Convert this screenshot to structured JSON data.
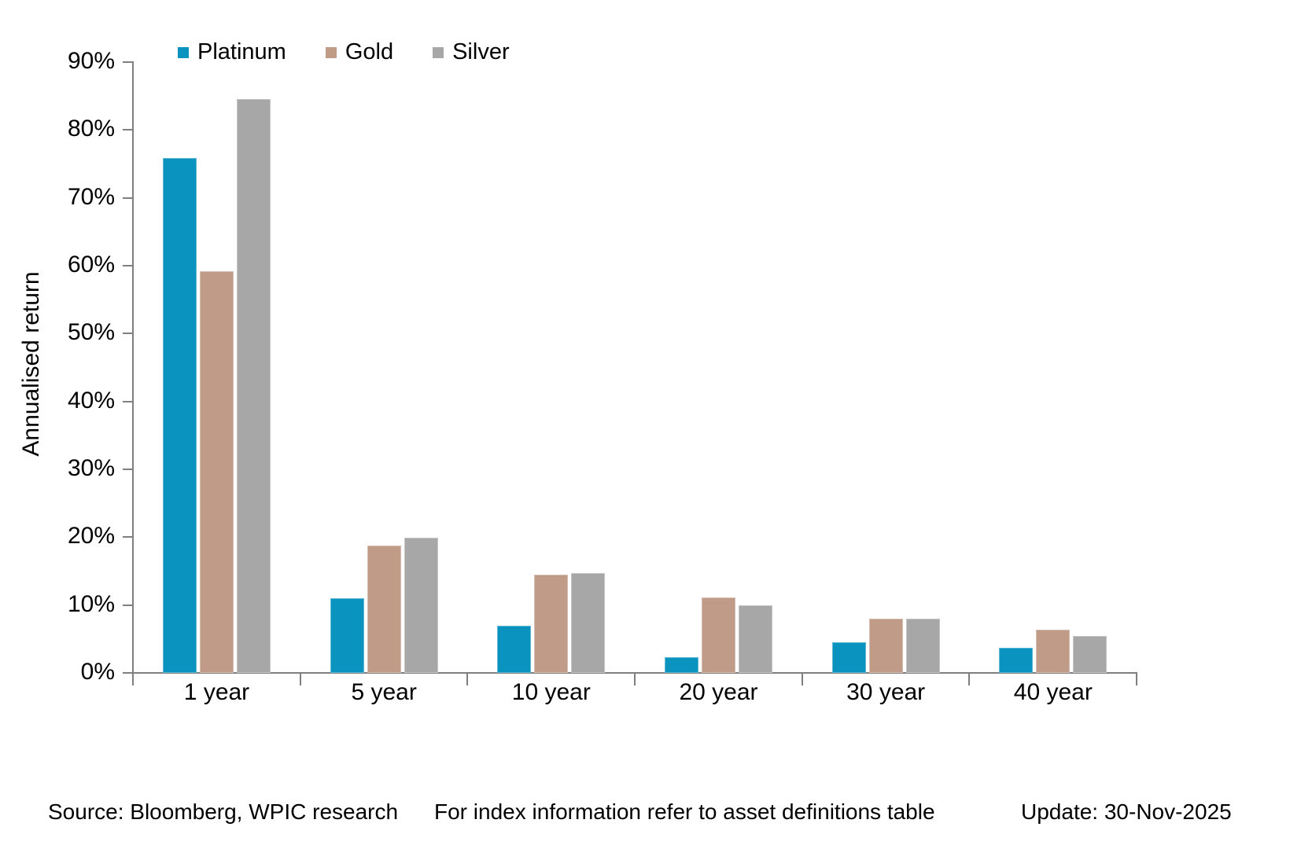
{
  "legend": {
    "items": [
      {
        "label": "Platinum",
        "color": "#0a93be"
      },
      {
        "label": "Gold",
        "color": "#bf9b88"
      },
      {
        "label": "Silver",
        "color": "#a7a7a7"
      }
    ]
  },
  "y_axis": {
    "title": "Annualised return",
    "tick_labels": [
      "0%",
      "10%",
      "20%",
      "30%",
      "40%",
      "50%",
      "60%",
      "70%",
      "80%",
      "90%"
    ]
  },
  "footer": {
    "source": "Source: Bloomberg, WPIC research",
    "note": "For index information refer to asset definitions table",
    "update": "Update: 30-Nov-2025"
  },
  "colors": {
    "platinum": "#0a93be",
    "gold": "#bf9b88",
    "silver": "#a7a7a7",
    "axis": "#7f7f7f"
  },
  "chart_data": {
    "type": "bar",
    "title": "",
    "categories": [
      "1 year",
      "5 year",
      "10 year",
      "20 year",
      "30 year",
      "40 year"
    ],
    "series": [
      {
        "name": "Platinum",
        "color": "#0a93be",
        "values": [
          75.9,
          11.0,
          7.0,
          2.3,
          4.5,
          3.7
        ]
      },
      {
        "name": "Gold",
        "color": "#bf9b88",
        "values": [
          59.2,
          18.8,
          14.5,
          11.1,
          8.0,
          6.4
        ]
      },
      {
        "name": "Silver",
        "color": "#a7a7a7",
        "values": [
          84.5,
          19.9,
          14.7,
          10.0,
          8.0,
          5.4
        ]
      }
    ],
    "xlabel": "",
    "ylabel": "Annualised return",
    "ylim": [
      0,
      90
    ],
    "ytick_step": 10,
    "grid": false,
    "legend_position": "top-left"
  }
}
